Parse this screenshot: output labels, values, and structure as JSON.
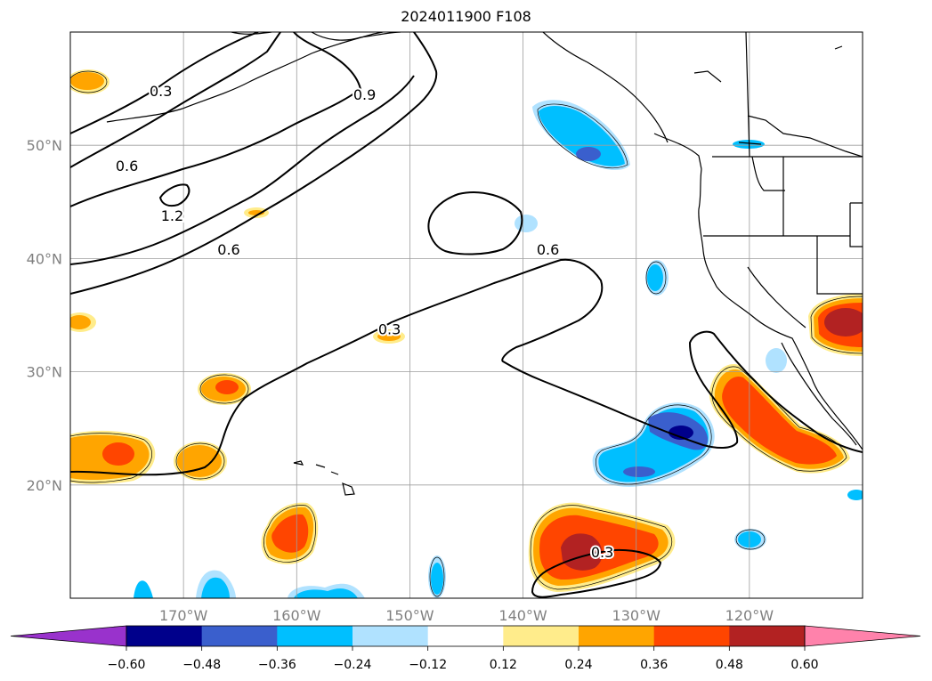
{
  "title": "2024011900 F108",
  "map": {
    "lon_range": [
      -180,
      -110
    ],
    "lat_range": [
      10,
      60
    ],
    "lon_ticks": [
      {
        "lon": -170,
        "label": "170°W"
      },
      {
        "lon": -160,
        "label": "160°W"
      },
      {
        "lon": -150,
        "label": "150°W"
      },
      {
        "lon": -140,
        "label": "140°W"
      },
      {
        "lon": -130,
        "label": "130°W"
      },
      {
        "lon": -120,
        "label": "120°W"
      }
    ],
    "lat_ticks": [
      {
        "lat": 50,
        "label": "50°N"
      },
      {
        "lat": 40,
        "label": "40°N"
      },
      {
        "lat": 30,
        "label": "30°N"
      },
      {
        "lat": 20,
        "label": "20°N"
      }
    ],
    "grid": true,
    "tick_label_color": "#808080",
    "contour_labels": [
      {
        "text": "0.3",
        "lon": -172,
        "lat": 54.8
      },
      {
        "text": "0.6",
        "lon": -175,
        "lat": 48.2
      },
      {
        "text": "0.9",
        "lon": -154,
        "lat": 54.5
      },
      {
        "text": "1.2",
        "lon": -171,
        "lat": 43.8
      },
      {
        "text": "0.6",
        "lon": -166,
        "lat": 40.8
      },
      {
        "text": "0.6",
        "lon": -137.8,
        "lat": 40.8
      },
      {
        "text": "0.3",
        "lon": -151.8,
        "lat": 33.8
      },
      {
        "text": "0.3",
        "lon": -133,
        "lat": 14.1
      }
    ]
  },
  "colorbar": {
    "colors": [
      "#9932cc",
      "#00008b",
      "#3a5fcd",
      "#00bfff",
      "#b0e2ff",
      "#ffffff",
      "#ffec8b",
      "#ffa500",
      "#ff4500",
      "#b22222",
      "#ff82ab"
    ],
    "labels": [
      "−0.60",
      "−0.48",
      "−0.36",
      "−0.24",
      "−0.12",
      "0.12",
      "0.24",
      "0.36",
      "0.48",
      "0.60"
    ]
  }
}
